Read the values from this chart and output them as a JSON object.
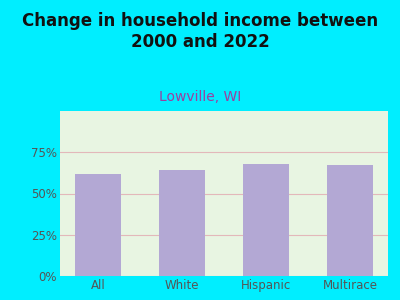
{
  "title": "Change in household income between\n2000 and 2022",
  "subtitle": "Lowville, WI",
  "categories": [
    "All",
    "White",
    "Hispanic",
    "Multirace"
  ],
  "values": [
    62,
    64,
    68,
    67
  ],
  "bar_color": "#b3a8d4",
  "background_outer": "#00eeff",
  "background_plot": "#e8f5e2",
  "title_fontsize": 12,
  "title_color": "#111111",
  "subtitle_fontsize": 10,
  "subtitle_color": "#9b3fa0",
  "tick_label_color": "#555555",
  "xlabel_color": "#555555",
  "ylim": [
    0,
    100
  ],
  "yticks": [
    0,
    25,
    50,
    75
  ],
  "ytick_labels": [
    "0%",
    "25%",
    "50%",
    "75%"
  ],
  "grid_color": "#e090a0",
  "grid_alpha": 0.6,
  "grid_linewidth": 0.8
}
